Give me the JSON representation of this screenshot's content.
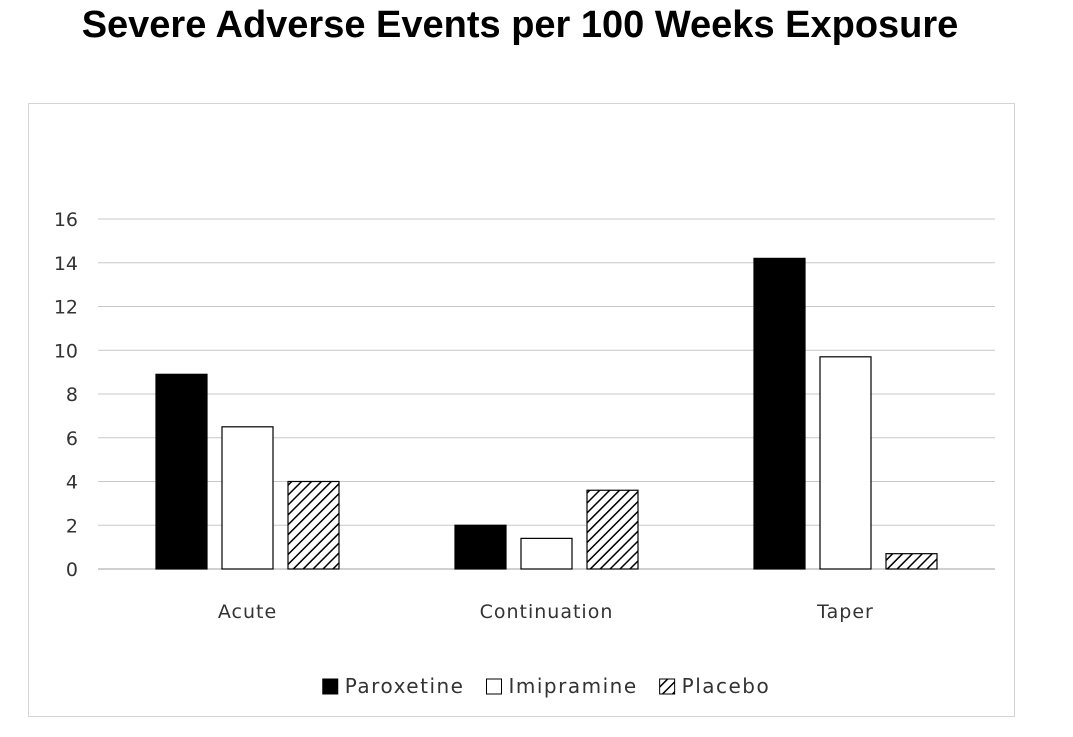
{
  "title": "Severe Adverse Events per 100 Weeks Exposure",
  "chart_data": {
    "type": "bar",
    "title": "Severe Adverse Events per 100 Weeks Exposure",
    "xlabel": "",
    "ylabel": "",
    "categories": [
      "Acute",
      "Continuation",
      "Taper"
    ],
    "series": [
      {
        "name": "Paroxetine",
        "values": [
          8.9,
          2.0,
          14.2
        ],
        "fill": "solid-black"
      },
      {
        "name": "Imipramine",
        "values": [
          6.5,
          1.4,
          9.7
        ],
        "fill": "white"
      },
      {
        "name": "Placebo",
        "values": [
          4.0,
          3.6,
          0.7
        ],
        "fill": "diagonal-hatch"
      }
    ],
    "ylim": [
      0,
      16
    ],
    "yticks": [
      0,
      2,
      4,
      6,
      8,
      10,
      12,
      14,
      16
    ],
    "grid": true,
    "legend_position": "bottom",
    "colors": {
      "bar_stroke": "#000000",
      "solid": "#000000",
      "gridline": "#c8c8c8",
      "axis": "#a0a0a0",
      "text": "#333333"
    }
  }
}
